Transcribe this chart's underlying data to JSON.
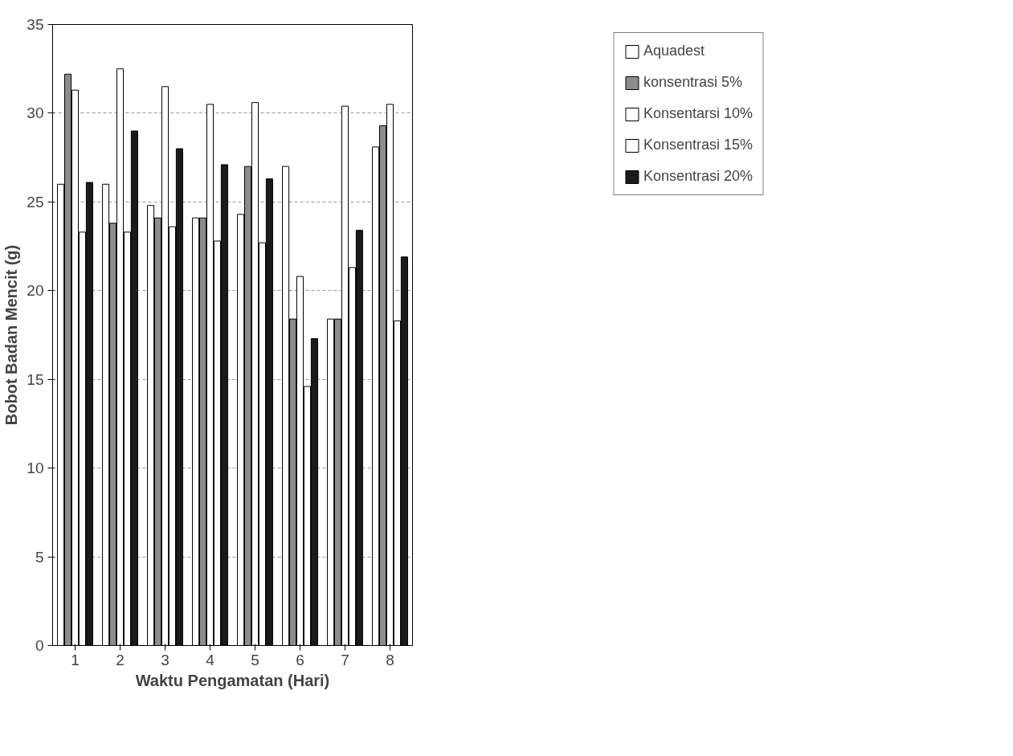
{
  "chart_data": {
    "type": "bar",
    "xlabel": "Waktu Pengamatan (Hari)",
    "ylabel": "Bobot Badan Mencit (g)",
    "categories": [
      "1",
      "2",
      "3",
      "4",
      "5",
      "6",
      "7",
      "8"
    ],
    "series": [
      {
        "name": "Aquadest",
        "color": "#ffffff",
        "values": [
          26,
          26,
          24.8,
          24.1,
          24.3,
          27,
          18.4,
          28.1
        ]
      },
      {
        "name": "konsentrasi 5%",
        "color": "#8c8c8c",
        "values": [
          32.2,
          23.8,
          24.1,
          24.1,
          27,
          18.4,
          18.4,
          29.3
        ]
      },
      {
        "name": "Konsentarsi 10%",
        "color": "#ffffff",
        "values": [
          31.3,
          32.5,
          31.5,
          30.5,
          30.6,
          20.8,
          30.4,
          30.5
        ]
      },
      {
        "name": "Konsentrasi 15%",
        "color": "#ffffff",
        "values": [
          23.3,
          23.3,
          23.6,
          22.8,
          22.7,
          14.6,
          21.3,
          18.3
        ]
      },
      {
        "name": "Konsentrasi 20%",
        "color": "#1a1a1a",
        "values": [
          26.1,
          29,
          28,
          27.1,
          26.3,
          17.3,
          23.4,
          21.9
        ]
      }
    ],
    "ylim": [
      0,
      35
    ],
    "yticks": [
      0,
      5,
      10,
      15,
      20,
      25,
      30,
      35
    ],
    "grid": "y",
    "legend": "right"
  }
}
